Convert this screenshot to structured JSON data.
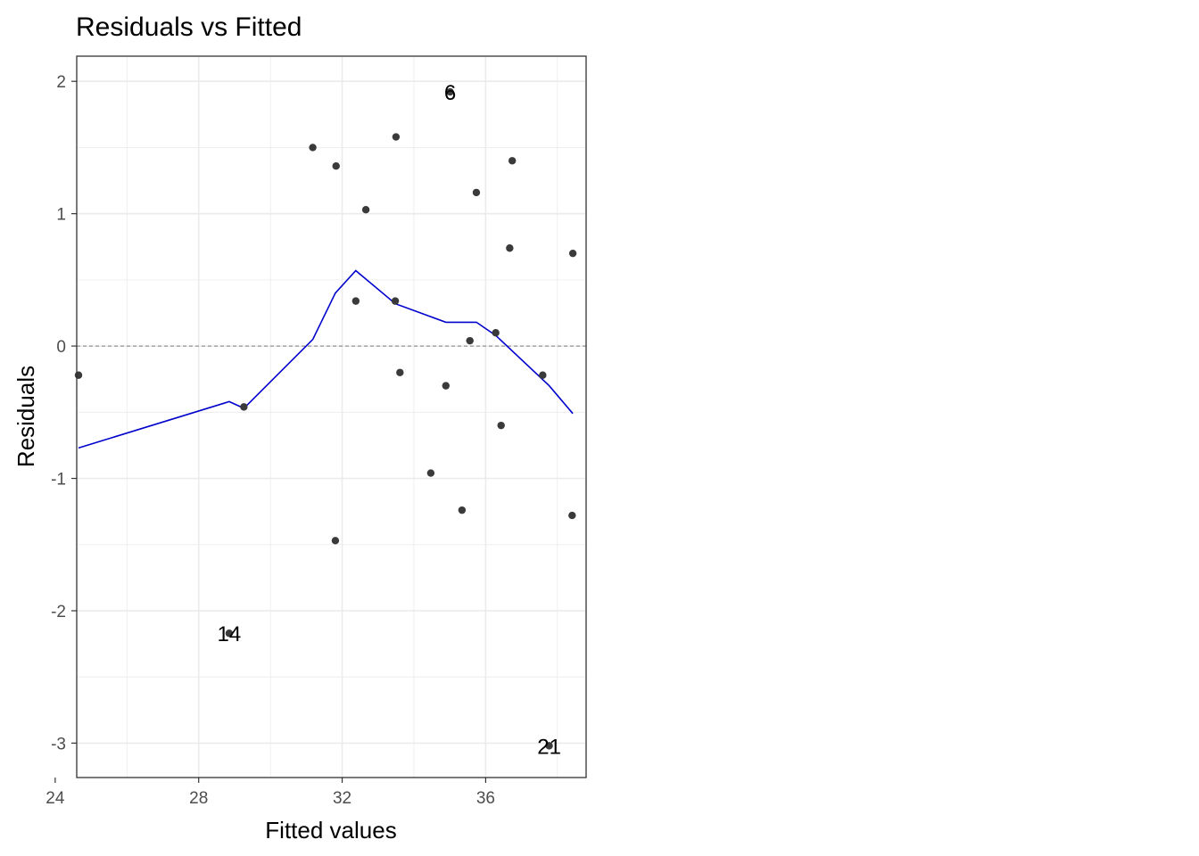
{
  "chart_data": {
    "type": "scatter",
    "title": "Residuals vs Fitted",
    "xlabel": "Fitted values",
    "ylabel": "Residuals",
    "xlim": [
      24.6,
      38.8
    ],
    "ylim": [
      -3.26,
      2.19
    ],
    "x_ticks": [
      24,
      28,
      32,
      36
    ],
    "y_ticks": [
      -3,
      -2,
      -1,
      0,
      1,
      2
    ],
    "x_tick_labels": [
      "24",
      "28",
      "32",
      "36"
    ],
    "y_tick_labels": [
      "-3",
      "-2",
      "-1",
      "0",
      "1",
      "2"
    ],
    "grid": true,
    "reference_line": {
      "y": 0,
      "style": "dashed",
      "color": "#808080"
    },
    "colors": {
      "points": "#3a3a3a",
      "smooth": "#0000cc",
      "grid": "#ebebeb",
      "panel_border": "#333333"
    },
    "points": [
      {
        "x": 24.65,
        "y": -0.22
      },
      {
        "x": 28.85,
        "y": -2.17,
        "label": "14"
      },
      {
        "x": 29.26,
        "y": -0.46
      },
      {
        "x": 31.18,
        "y": 1.5
      },
      {
        "x": 31.83,
        "y": 1.36
      },
      {
        "x": 31.81,
        "y": -1.47
      },
      {
        "x": 32.38,
        "y": 0.34
      },
      {
        "x": 32.66,
        "y": 1.03
      },
      {
        "x": 33.5,
        "y": 1.58
      },
      {
        "x": 33.48,
        "y": 0.34
      },
      {
        "x": 33.61,
        "y": -0.2
      },
      {
        "x": 34.47,
        "y": -0.96
      },
      {
        "x": 34.89,
        "y": -0.3
      },
      {
        "x": 35.01,
        "y": 1.92,
        "label": "6"
      },
      {
        "x": 35.34,
        "y": -1.24
      },
      {
        "x": 35.56,
        "y": 0.04
      },
      {
        "x": 35.74,
        "y": 1.16
      },
      {
        "x": 36.28,
        "y": 0.1
      },
      {
        "x": 36.43,
        "y": -0.6
      },
      {
        "x": 36.67,
        "y": 0.74
      },
      {
        "x": 36.74,
        "y": 1.4
      },
      {
        "x": 37.59,
        "y": -0.22
      },
      {
        "x": 37.77,
        "y": -3.02,
        "label": "21"
      },
      {
        "x": 38.43,
        "y": 0.7
      },
      {
        "x": 38.41,
        "y": -1.28
      }
    ],
    "smooth_line": [
      {
        "x": 24.65,
        "y": -0.77
      },
      {
        "x": 28.85,
        "y": -0.42
      },
      {
        "x": 29.26,
        "y": -0.47
      },
      {
        "x": 31.18,
        "y": 0.05
      },
      {
        "x": 31.81,
        "y": 0.4
      },
      {
        "x": 32.38,
        "y": 0.57
      },
      {
        "x": 33.48,
        "y": 0.32
      },
      {
        "x": 34.89,
        "y": 0.18
      },
      {
        "x": 35.74,
        "y": 0.18
      },
      {
        "x": 36.28,
        "y": 0.08
      },
      {
        "x": 37.77,
        "y": -0.3
      },
      {
        "x": 38.43,
        "y": -0.51
      }
    ]
  }
}
